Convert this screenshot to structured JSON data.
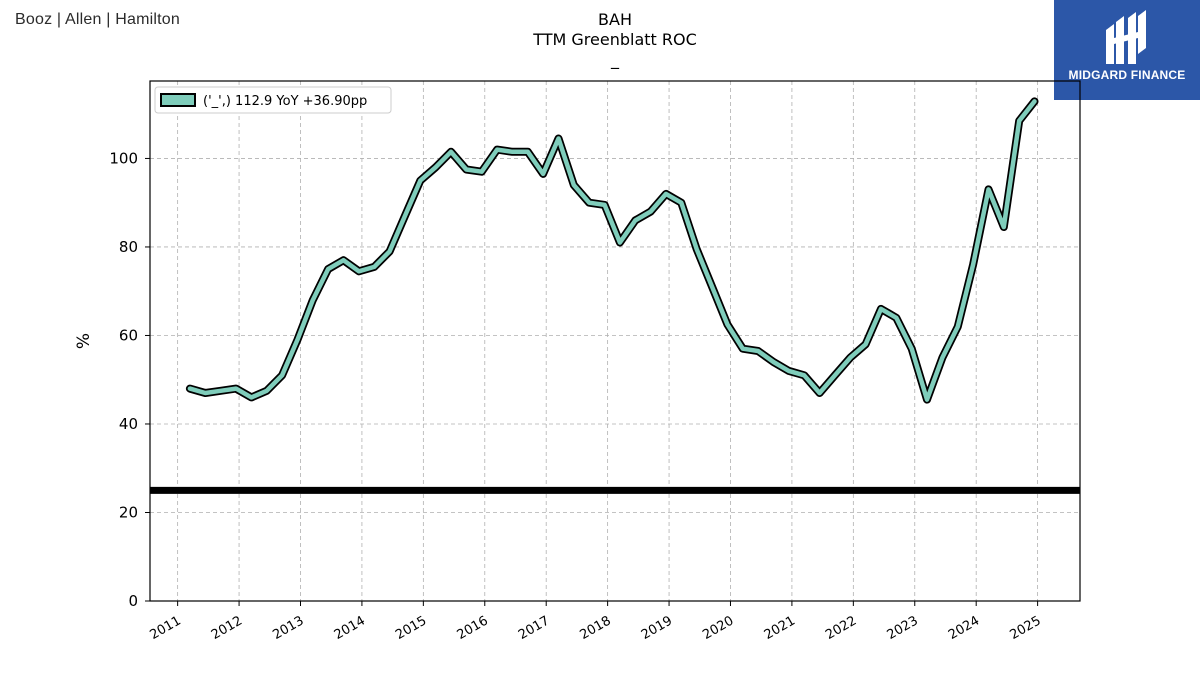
{
  "header": {
    "company_logo_text": "Booz | Allen | Hamilton",
    "title_line1": "BAH",
    "title_line2": "TTM Greenblatt ROC",
    "title_line3": "_"
  },
  "brand": {
    "name": "MIDGARD FINANCE",
    "color": "#2c57a8"
  },
  "chart_data": {
    "type": "line",
    "title": "BAH TTM Greenblatt ROC",
    "ylabel": "%",
    "xlabel": "",
    "xlim": [
      2010.55,
      2025.69
    ],
    "ylim": [
      0,
      117.5
    ],
    "yticks": [
      0,
      20,
      40,
      60,
      80,
      100
    ],
    "xticks": [
      2011,
      2012,
      2013,
      2014,
      2015,
      2016,
      2017,
      2018,
      2019,
      2020,
      2021,
      2022,
      2023,
      2024,
      2025
    ],
    "grid": true,
    "legend_position": "top-left",
    "threshold_line": 25,
    "series": [
      {
        "name": "('_',) 112.9 YoY +36.90pp",
        "color": "#7fcdbb",
        "edge_color": "#000000",
        "x": [
          2011.2,
          2011.45,
          2011.7,
          2011.95,
          2012.2,
          2012.45,
          2012.7,
          2012.95,
          2013.2,
          2013.45,
          2013.7,
          2013.95,
          2014.2,
          2014.45,
          2014.7,
          2014.95,
          2015.2,
          2015.45,
          2015.7,
          2015.95,
          2016.2,
          2016.45,
          2016.7,
          2016.95,
          2017.2,
          2017.45,
          2017.7,
          2017.95,
          2018.2,
          2018.45,
          2018.7,
          2018.95,
          2019.2,
          2019.45,
          2019.7,
          2019.95,
          2020.2,
          2020.45,
          2020.7,
          2020.95,
          2021.2,
          2021.45,
          2021.7,
          2021.95,
          2022.2,
          2022.45,
          2022.7,
          2022.95,
          2023.2,
          2023.45,
          2023.7,
          2023.95,
          2024.2,
          2024.45,
          2024.7,
          2024.95
        ],
        "y": [
          48,
          47,
          47.5,
          48,
          46,
          47.5,
          51,
          59,
          68,
          75,
          77,
          74.5,
          75.5,
          79,
          87,
          95,
          98,
          101.5,
          97.5,
          97,
          102,
          101.5,
          101.5,
          96.5,
          104.5,
          94,
          90,
          89.5,
          81,
          86,
          88,
          92,
          90,
          79.5,
          71,
          62.5,
          57,
          56.5,
          54,
          52,
          51,
          47,
          51,
          55,
          58,
          66,
          64,
          57,
          45.5,
          55,
          62,
          76,
          93,
          84.5,
          108.5,
          112.9
        ]
      }
    ]
  }
}
